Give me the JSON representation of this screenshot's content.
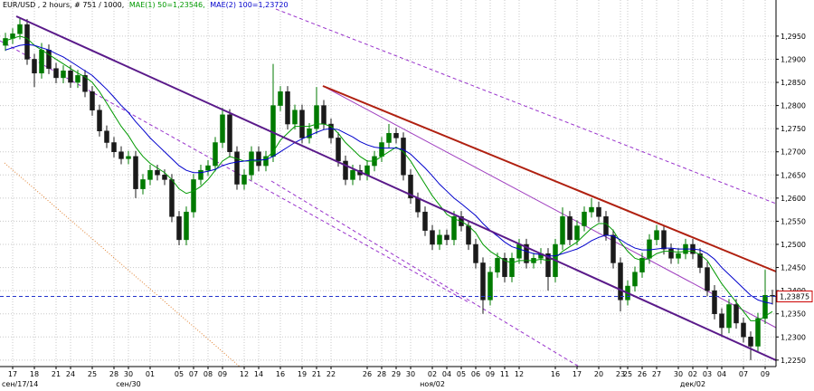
{
  "chart_data": {
    "type": "candlestick",
    "title": "EUR/USD , 2 hours, # 751 / 1000,",
    "up_color": "#007a00",
    "down_color": "#1a1a1a",
    "categories": [
      null,
      "17",
      null,
      null,
      "18",
      null,
      null,
      "21",
      null,
      "24",
      null,
      null,
      "25",
      null,
      null,
      "28",
      null,
      "30",
      null,
      null,
      "01",
      null,
      null,
      null,
      "05",
      null,
      "07",
      null,
      "08",
      null,
      "09",
      null,
      null,
      "12",
      null,
      "14",
      null,
      null,
      "16",
      null,
      null,
      "19",
      null,
      "21",
      null,
      "22",
      null,
      null,
      null,
      null,
      "26",
      null,
      "28",
      null,
      "29",
      null,
      "30",
      null,
      null,
      "02",
      null,
      "04",
      null,
      "05",
      null,
      "06",
      null,
      "09",
      null,
      "11",
      null,
      "12",
      null,
      null,
      null,
      null,
      "16",
      null,
      null,
      "17",
      null,
      null,
      "20",
      null,
      null,
      "23",
      "25",
      null,
      "26",
      null,
      "27",
      null,
      null,
      "30",
      null,
      "02",
      null,
      "03",
      null,
      "04",
      null,
      null,
      "07",
      null,
      null,
      "09",
      null
    ],
    "month_labels": [
      null,
      "сен/17/14",
      null,
      null,
      null,
      null,
      null,
      null,
      null,
      null,
      null,
      null,
      null,
      null,
      null,
      null,
      null,
      "сен/30",
      null,
      null,
      null,
      null,
      null,
      null,
      null,
      null,
      null,
      null,
      null,
      null,
      null,
      null,
      null,
      null,
      null,
      null,
      null,
      null,
      null,
      null,
      null,
      null,
      null,
      null,
      null,
      null,
      null,
      null,
      null,
      null,
      null,
      null,
      null,
      null,
      null,
      null,
      null,
      null,
      null,
      "ноя/02",
      null,
      null,
      null,
      null,
      null,
      null,
      null,
      null,
      null,
      null,
      null,
      null,
      null,
      null,
      null,
      null,
      null,
      null,
      null,
      null,
      null,
      null,
      null,
      null,
      null,
      null,
      null,
      null,
      null,
      null,
      null,
      null,
      null,
      null,
      null,
      "дек/02",
      null,
      null,
      null,
      null,
      null,
      null,
      null,
      null,
      null,
      null,
      null
    ],
    "open": [
      1.293,
      1.2945,
      1.2955,
      1.2975,
      1.29,
      1.287,
      1.292,
      1.288,
      1.286,
      1.2875,
      1.285,
      1.2865,
      1.283,
      1.279,
      1.2745,
      1.272,
      1.27,
      1.2685,
      1.269,
      1.262,
      1.264,
      1.266,
      1.265,
      1.264,
      1.256,
      1.251,
      1.257,
      1.264,
      1.266,
      1.267,
      1.272,
      1.278,
      1.27,
      1.263,
      1.265,
      1.27,
      1.267,
      1.269,
      1.28,
      1.283,
      1.276,
      1.279,
      1.273,
      1.275,
      1.28,
      1.276,
      1.273,
      1.268,
      1.264,
      1.266,
      1.265,
      1.267,
      1.269,
      1.272,
      1.274,
      1.273,
      1.265,
      1.26,
      1.257,
      1.253,
      1.25,
      1.252,
      1.251,
      1.256,
      1.254,
      1.25,
      1.246,
      1.238,
      1.244,
      1.247,
      1.243,
      1.247,
      1.25,
      1.246,
      1.247,
      1.248,
      1.243,
      1.25,
      1.256,
      1.251,
      1.254,
      1.257,
      1.258,
      1.256,
      1.252,
      1.246,
      1.238,
      1.241,
      1.244,
      1.247,
      1.251,
      1.253,
      1.249,
      1.247,
      1.248,
      1.25,
      1.248,
      1.245,
      1.24,
      1.235,
      1.232,
      1.237,
      1.233,
      1.23,
      1.228,
      1.234,
      1.239
    ],
    "high": [
      1.2957,
      1.2967,
      1.299,
      1.2987,
      1.2912,
      1.2935,
      1.2932,
      1.2892,
      1.2887,
      1.2887,
      1.2877,
      1.2877,
      1.2842,
      1.2802,
      1.2757,
      1.2732,
      1.2712,
      1.2702,
      1.2702,
      1.2652,
      1.2672,
      1.2672,
      1.2662,
      1.2652,
      1.2572,
      1.2582,
      1.2652,
      1.2672,
      1.2682,
      1.2732,
      1.2795,
      1.2792,
      1.2712,
      1.2662,
      1.2712,
      1.2712,
      1.2702,
      1.289,
      1.2842,
      1.2842,
      1.2802,
      1.2802,
      1.2762,
      1.284,
      1.2812,
      1.2772,
      1.2742,
      1.2692,
      1.2672,
      1.2672,
      1.2682,
      1.2702,
      1.2732,
      1.276,
      1.2752,
      1.2742,
      1.2662,
      1.2612,
      1.2582,
      1.2542,
      1.2532,
      1.2532,
      1.2572,
      1.2572,
      1.2552,
      1.2512,
      1.2472,
      1.2452,
      1.2482,
      1.2482,
      1.2482,
      1.2512,
      1.2512,
      1.2482,
      1.2492,
      1.2492,
      1.2512,
      1.258,
      1.2572,
      1.2552,
      1.2582,
      1.26,
      1.2592,
      1.2572,
      1.2532,
      1.2472,
      1.2422,
      1.2452,
      1.2482,
      1.2522,
      1.2542,
      1.2542,
      1.2502,
      1.2492,
      1.2512,
      1.2512,
      1.2492,
      1.2462,
      1.2412,
      1.2362,
      1.2382,
      1.2382,
      1.2342,
      1.2312,
      1.2352,
      1.2445,
      1.2402
    ],
    "low": [
      1.2918,
      1.2933,
      1.2943,
      1.2888,
      1.284,
      1.2858,
      1.2868,
      1.2848,
      1.2848,
      1.2838,
      1.2838,
      1.2818,
      1.2778,
      1.2733,
      1.2708,
      1.2688,
      1.2673,
      1.2673,
      1.26,
      1.2608,
      1.2628,
      1.2638,
      1.2628,
      1.2548,
      1.2498,
      1.2498,
      1.2558,
      1.2628,
      1.2648,
      1.2658,
      1.2708,
      1.2688,
      1.2618,
      1.2618,
      1.2638,
      1.2658,
      1.2658,
      1.2678,
      1.2788,
      1.2748,
      1.2748,
      1.2718,
      1.2718,
      1.2738,
      1.2748,
      1.2718,
      1.2668,
      1.2628,
      1.2628,
      1.2638,
      1.2638,
      1.2658,
      1.2678,
      1.2708,
      1.2718,
      1.2638,
      1.2588,
      1.2558,
      1.2518,
      1.2488,
      1.2488,
      1.2498,
      1.2498,
      1.2528,
      1.2488,
      1.2448,
      1.235,
      1.2368,
      1.2428,
      1.2418,
      1.2418,
      1.2458,
      1.2448,
      1.2448,
      1.2458,
      1.24,
      1.2418,
      1.2488,
      1.2498,
      1.2498,
      1.2528,
      1.2558,
      1.2548,
      1.2508,
      1.2448,
      1.2355,
      1.2368,
      1.2398,
      1.2428,
      1.2458,
      1.2498,
      1.2478,
      1.2458,
      1.2458,
      1.2468,
      1.2468,
      1.2438,
      1.2388,
      1.2338,
      1.23,
      1.2308,
      1.2318,
      1.2288,
      1.225,
      1.2268,
      1.2328,
      1.237
    ],
    "close": [
      1.2945,
      1.2955,
      1.2975,
      1.29,
      1.287,
      1.292,
      1.288,
      1.286,
      1.2875,
      1.285,
      1.2865,
      1.283,
      1.279,
      1.2745,
      1.272,
      1.27,
      1.2685,
      1.269,
      1.262,
      1.264,
      1.266,
      1.265,
      1.264,
      1.256,
      1.251,
      1.257,
      1.264,
      1.266,
      1.267,
      1.272,
      1.278,
      1.27,
      1.263,
      1.265,
      1.27,
      1.267,
      1.269,
      1.28,
      1.283,
      1.276,
      1.279,
      1.273,
      1.275,
      1.28,
      1.276,
      1.273,
      1.268,
      1.264,
      1.266,
      1.265,
      1.267,
      1.269,
      1.272,
      1.274,
      1.273,
      1.265,
      1.26,
      1.257,
      1.253,
      1.25,
      1.252,
      1.251,
      1.256,
      1.254,
      1.25,
      1.246,
      1.238,
      1.244,
      1.247,
      1.243,
      1.247,
      1.25,
      1.246,
      1.247,
      1.248,
      1.243,
      1.25,
      1.256,
      1.251,
      1.254,
      1.257,
      1.258,
      1.256,
      1.252,
      1.246,
      1.238,
      1.241,
      1.244,
      1.247,
      1.251,
      1.253,
      1.249,
      1.247,
      1.248,
      1.25,
      1.248,
      1.245,
      1.24,
      1.235,
      1.232,
      1.237,
      1.233,
      1.23,
      1.228,
      1.234,
      1.239,
      1.2388
    ],
    "series": [
      {
        "name": "MAE(1) 50=1,23546,",
        "color": "#009900",
        "values": [
          1.294,
          1.2945,
          1.295,
          1.2945,
          1.293,
          1.292,
          1.291,
          1.29,
          1.289,
          1.288,
          1.287,
          1.2862,
          1.285,
          1.283,
          1.2805,
          1.278,
          1.2755,
          1.2735,
          1.271,
          1.269,
          1.2675,
          1.2665,
          1.2655,
          1.264,
          1.262,
          1.261,
          1.2615,
          1.2625,
          1.264,
          1.266,
          1.268,
          1.269,
          1.2685,
          1.268,
          1.268,
          1.268,
          1.2685,
          1.27,
          1.2725,
          1.274,
          1.2755,
          1.2755,
          1.2755,
          1.276,
          1.276,
          1.2755,
          1.274,
          1.272,
          1.2705,
          1.269,
          1.268,
          1.268,
          1.269,
          1.27,
          1.271,
          1.27,
          1.268,
          1.2655,
          1.263,
          1.2605,
          1.2585,
          1.2565,
          1.2555,
          1.255,
          1.254,
          1.2525,
          1.25,
          1.2485,
          1.2475,
          1.2465,
          1.246,
          1.2465,
          1.2465,
          1.2465,
          1.2468,
          1.2465,
          1.247,
          1.2485,
          1.2495,
          1.2505,
          1.252,
          1.2535,
          1.2545,
          1.2545,
          1.253,
          1.2505,
          1.2485,
          1.247,
          1.2465,
          1.247,
          1.248,
          1.2485,
          1.2485,
          1.2483,
          1.2485,
          1.2485,
          1.2478,
          1.2465,
          1.244,
          1.2415,
          1.2395,
          1.2375,
          1.2355,
          1.2335,
          1.2335,
          1.2345,
          1.2355
        ]
      },
      {
        "name": "MAE(2) 100=1,23720",
        "color": "#0000cc",
        "values": [
          1.292,
          1.2925,
          1.293,
          1.2932,
          1.293,
          1.2925,
          1.292,
          1.2912,
          1.2905,
          1.2895,
          1.2885,
          1.2875,
          1.2865,
          1.285,
          1.2835,
          1.2818,
          1.28,
          1.2785,
          1.2765,
          1.2748,
          1.273,
          1.2715,
          1.27,
          1.2685,
          1.267,
          1.266,
          1.2655,
          1.2655,
          1.2658,
          1.2662,
          1.267,
          1.2675,
          1.2678,
          1.268,
          1.2682,
          1.2682,
          1.2683,
          1.269,
          1.27,
          1.271,
          1.272,
          1.2728,
          1.2735,
          1.2742,
          1.2748,
          1.275,
          1.2748,
          1.274,
          1.2732,
          1.2722,
          1.2715,
          1.271,
          1.2708,
          1.2708,
          1.2708,
          1.2705,
          1.2695,
          1.268,
          1.2665,
          1.2648,
          1.263,
          1.2615,
          1.26,
          1.2588,
          1.2575,
          1.2562,
          1.2545,
          1.253,
          1.2518,
          1.2505,
          1.2495,
          1.249,
          1.2485,
          1.248,
          1.2478,
          1.2475,
          1.2475,
          1.248,
          1.2485,
          1.249,
          1.2498,
          1.2508,
          1.2515,
          1.252,
          1.2518,
          1.251,
          1.25,
          1.2492,
          1.2488,
          1.2488,
          1.249,
          1.2492,
          1.2492,
          1.249,
          1.249,
          1.249,
          1.2488,
          1.248,
          1.2468,
          1.245,
          1.2435,
          1.242,
          1.2405,
          1.239,
          1.238,
          1.2375,
          1.2372
        ]
      }
    ],
    "current_price": {
      "value": 1.23875,
      "label": "1,23875"
    },
    "current_color": "#cc0000",
    "ylim": [
      1.2236,
      1.3028
    ],
    "yticks": [
      {
        "value": 1.225,
        "label": "1,2250"
      },
      {
        "value": 1.23,
        "label": "1,2300"
      },
      {
        "value": 1.235,
        "label": "1,2350"
      },
      {
        "value": 1.24,
        "label": "1,2400"
      },
      {
        "value": 1.245,
        "label": "1,2450"
      },
      {
        "value": 1.25,
        "label": "1,2500"
      },
      {
        "value": 1.255,
        "label": "1,2550"
      },
      {
        "value": 1.26,
        "label": "1,2600"
      },
      {
        "value": 1.265,
        "label": "1,2650"
      },
      {
        "value": 1.27,
        "label": "1,2700"
      },
      {
        "value": 1.275,
        "label": "1,2750"
      },
      {
        "value": 1.28,
        "label": "1,2800"
      },
      {
        "value": 1.285,
        "label": "1,2850"
      },
      {
        "value": 1.29,
        "label": "1,2900"
      },
      {
        "value": 1.295,
        "label": "1,2950"
      }
    ],
    "grid": true
  }
}
